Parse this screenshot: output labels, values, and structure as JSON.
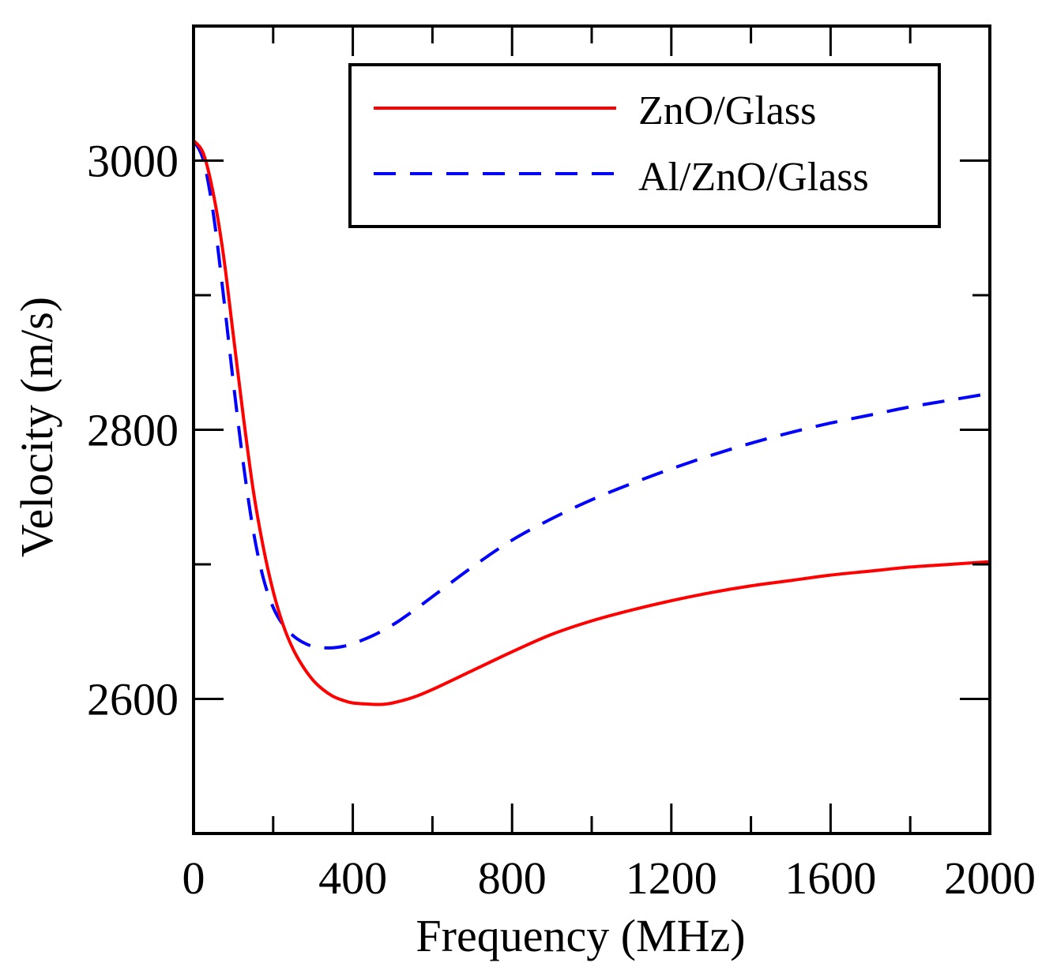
{
  "chart_data": {
    "type": "line",
    "title": "",
    "xlabel": "Frequency (MHz)",
    "ylabel": "Velocity (m/s)",
    "xlim": [
      0,
      2000
    ],
    "ylim": [
      2500,
      3100
    ],
    "xticks": [
      0,
      400,
      800,
      1200,
      1600,
      2000
    ],
    "xticks_minor": [
      200,
      600,
      1000,
      1400,
      1800
    ],
    "yticks": [
      2600,
      2800,
      3000
    ],
    "yticks_minor": [
      2700,
      2900
    ],
    "legend_position": "top-right",
    "grid": false,
    "series": [
      {
        "name": "ZnO/Glass",
        "color": "#ff0000",
        "style": "solid",
        "x": [
          0,
          25,
          50,
          75,
          100,
          125,
          150,
          175,
          200,
          225,
          250,
          275,
          300,
          325,
          350,
          375,
          400,
          450,
          475,
          500,
          550,
          600,
          700,
          800,
          900,
          1000,
          1100,
          1200,
          1300,
          1400,
          1500,
          1600,
          1700,
          1800,
          1900,
          2000
        ],
        "y": [
          3015,
          3005,
          2975,
          2930,
          2870,
          2810,
          2755,
          2713,
          2680,
          2655,
          2637,
          2624,
          2614,
          2607,
          2602,
          2599,
          2597,
          2596,
          2596,
          2597,
          2601,
          2607,
          2621,
          2635,
          2648,
          2658,
          2666,
          2673,
          2679,
          2684,
          2688,
          2692,
          2695,
          2698,
          2700,
          2702
        ]
      },
      {
        "name": "Al/ZnO/Glass",
        "color": "#0000ff",
        "style": "dashed",
        "x": [
          0,
          25,
          50,
          75,
          100,
          125,
          150,
          175,
          200,
          225,
          250,
          275,
          300,
          325,
          350,
          375,
          400,
          450,
          500,
          550,
          600,
          700,
          800,
          900,
          1000,
          1100,
          1200,
          1300,
          1400,
          1500,
          1600,
          1700,
          1800,
          1900,
          2000
        ],
        "y": [
          3015,
          3000,
          2960,
          2900,
          2835,
          2775,
          2725,
          2690,
          2668,
          2655,
          2647,
          2642,
          2639,
          2638,
          2638,
          2639,
          2641,
          2647,
          2655,
          2665,
          2676,
          2698,
          2718,
          2734,
          2748,
          2760,
          2771,
          2781,
          2790,
          2798,
          2805,
          2811,
          2817,
          2822,
          2827
        ]
      }
    ]
  }
}
